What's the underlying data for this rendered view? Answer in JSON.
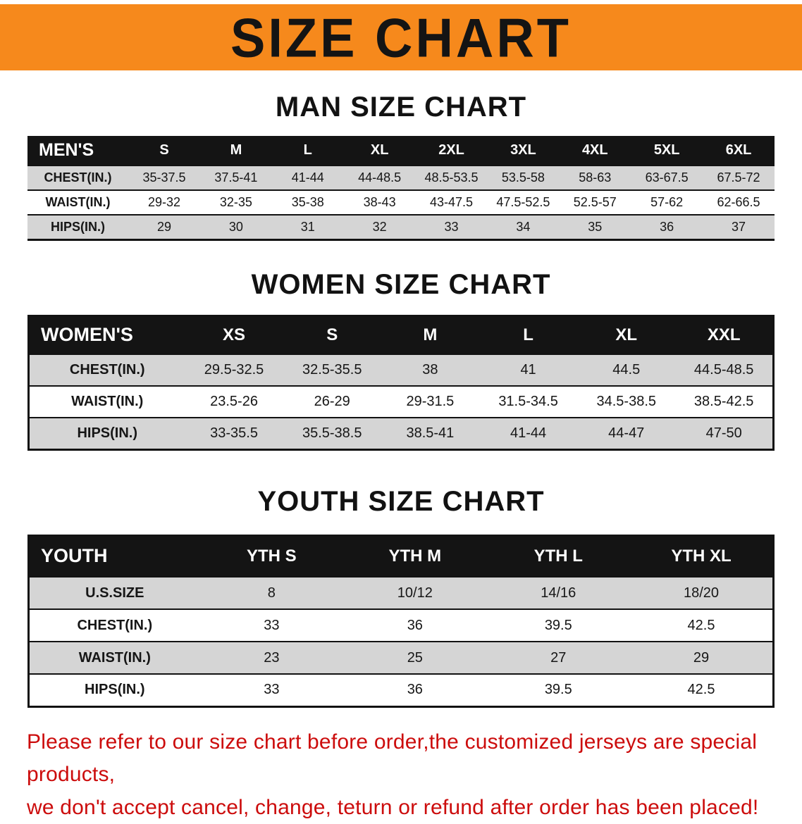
{
  "banner": {
    "title": "SIZE CHART",
    "bg": "#f6891c"
  },
  "sections": [
    {
      "heading": "MAN SIZE CHART",
      "table": {
        "header": [
          "MEN'S",
          "S",
          "M",
          "L",
          "XL",
          "2XL",
          "3XL",
          "4XL",
          "5XL",
          "6XL"
        ],
        "rows": [
          [
            "CHEST(IN.)",
            "35-37.5",
            "37.5-41",
            "41-44",
            "44-48.5",
            "48.5-53.5",
            "53.5-58",
            "58-63",
            "63-67.5",
            "67.5-72"
          ],
          [
            "WAIST(IN.)",
            "29-32",
            "32-35",
            "35-38",
            "38-43",
            "43-47.5",
            "47.5-52.5",
            "52.5-57",
            "57-62",
            "62-66.5"
          ],
          [
            "HIPS(IN.)",
            "29",
            "30",
            "31",
            "32",
            "33",
            "34",
            "35",
            "36",
            "37"
          ]
        ]
      }
    },
    {
      "heading": "WOMEN SIZE CHART",
      "table": {
        "header": [
          "WOMEN'S",
          "XS",
          "S",
          "M",
          "L",
          "XL",
          "XXL"
        ],
        "rows": [
          [
            "CHEST(IN.)",
            "29.5-32.5",
            "32.5-35.5",
            "38",
            "41",
            "44.5",
            "44.5-48.5"
          ],
          [
            "WAIST(IN.)",
            "23.5-26",
            "26-29",
            "29-31.5",
            "31.5-34.5",
            "34.5-38.5",
            "38.5-42.5"
          ],
          [
            "HIPS(IN.)",
            "33-35.5",
            "35.5-38.5",
            "38.5-41",
            "41-44",
            "44-47",
            "47-50"
          ]
        ]
      }
    },
    {
      "heading": "YOUTH SIZE CHART",
      "table": {
        "header": [
          "YOUTH",
          "YTH S",
          "YTH M",
          "YTH L",
          "YTH XL"
        ],
        "rows": [
          [
            "U.S.SIZE",
            "8",
            "10/12",
            "14/16",
            "18/20"
          ],
          [
            "CHEST(IN.)",
            "33",
            "36",
            "39.5",
            "42.5"
          ],
          [
            "WAIST(IN.)",
            "23",
            "25",
            "27",
            "29"
          ],
          [
            "HIPS(IN.)",
            "33",
            "36",
            "39.5",
            "42.5"
          ]
        ]
      }
    }
  ],
  "footer": {
    "line1": "Please refer to our size chart before order,the customized jerseys are special products,",
    "line2": "we don't accept cancel, change, teturn or refund after order has been placed!",
    "color": "#cc0c0c"
  }
}
